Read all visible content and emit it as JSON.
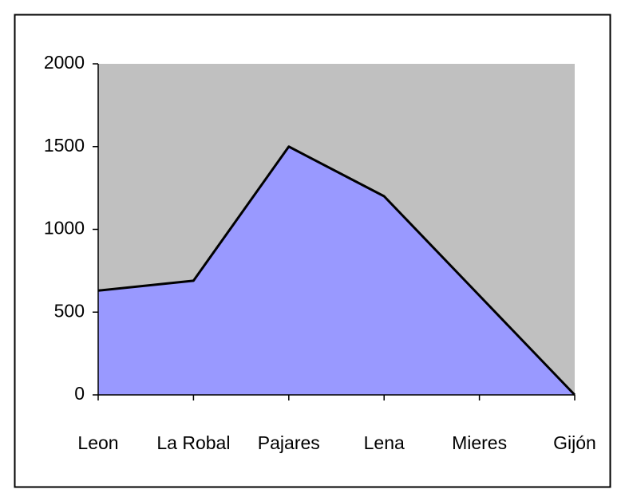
{
  "chart_data": {
    "type": "area",
    "categories": [
      "Leon",
      "La Robal",
      "Pajares",
      "Lena",
      "Mieres",
      "Gijón"
    ],
    "values": [
      630,
      690,
      1500,
      1200,
      600,
      0
    ],
    "color": "#9999ff",
    "line_color": "#000000",
    "plot_background": "#c0c0c0",
    "ylim": [
      0,
      2000
    ],
    "yticks": [
      0,
      500,
      1000,
      1500,
      2000
    ],
    "grid": false
  }
}
